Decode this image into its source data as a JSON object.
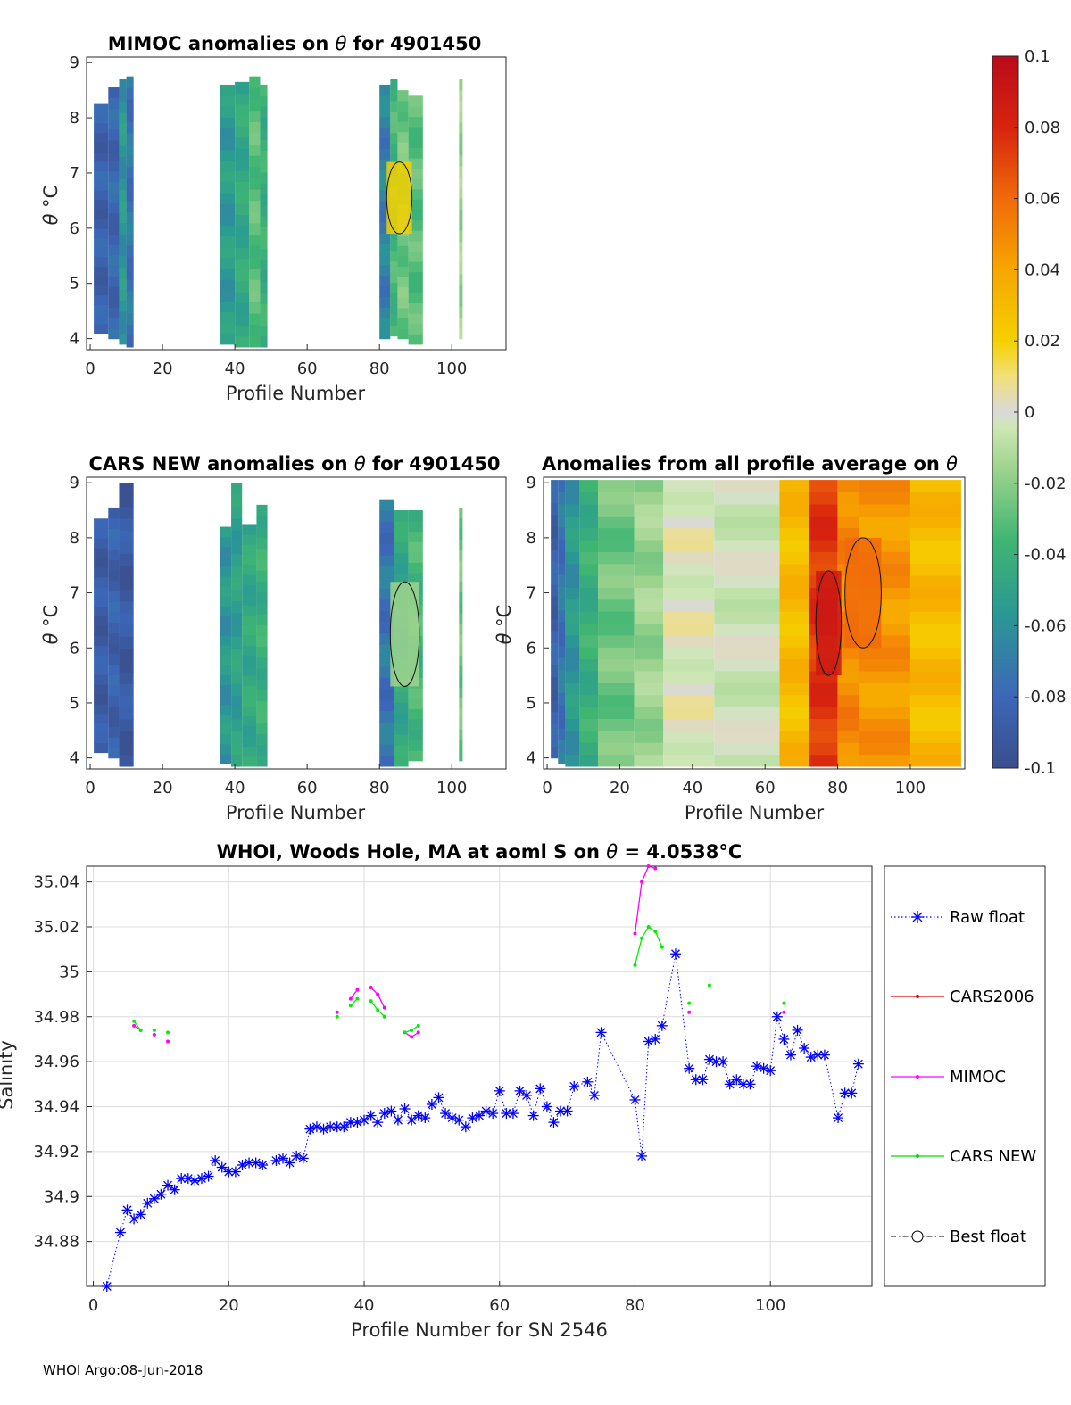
{
  "footer": "WHOI Argo:08-Jun-2018",
  "colorbar": {
    "ticks": [
      "0.1",
      "0.08",
      "0.06",
      "0.04",
      "0.02",
      "0",
      "-0.02",
      "-0.04",
      "-0.06",
      "-0.08",
      "-0.1"
    ],
    "range": [
      -0.1,
      0.1
    ]
  },
  "chart_data": [
    {
      "type": "heatmap",
      "title_prefix": "MIMOC anomalies on ",
      "title_symbol": "θ",
      "title_suffix": "  for 4901450",
      "xlabel": "Profile Number",
      "ylabel_symbol": "θ",
      "ylabel_unit": "°C",
      "xlim": [
        -1,
        115
      ],
      "ylim": [
        3.8,
        9.1
      ],
      "xticks": [
        "0",
        "20",
        "40",
        "60",
        "80",
        "100"
      ],
      "yticks": [
        "4",
        "5",
        "6",
        "7",
        "8",
        "9"
      ],
      "columns": [
        {
          "x0": 1,
          "x1": 5,
          "t0": 4.1,
          "t1": 8.25,
          "v": -0.085
        },
        {
          "x0": 5,
          "x1": 8,
          "t0": 4.0,
          "t1": 8.55,
          "v": -0.082
        },
        {
          "x0": 8,
          "x1": 10,
          "t0": 3.9,
          "t1": 8.7,
          "v": -0.06
        },
        {
          "x0": 10,
          "x1": 12,
          "t0": 3.85,
          "t1": 8.75,
          "v": -0.075
        },
        {
          "x0": 36,
          "x1": 40,
          "t0": 3.9,
          "t1": 8.6,
          "v": -0.058
        },
        {
          "x0": 40,
          "x1": 44,
          "t0": 3.85,
          "t1": 8.65,
          "v": -0.05
        },
        {
          "x0": 44,
          "x1": 47,
          "t0": 3.85,
          "t1": 8.75,
          "v": -0.035
        },
        {
          "x0": 47,
          "x1": 49,
          "t0": 3.85,
          "t1": 8.6,
          "v": -0.045
        },
        {
          "x0": 80,
          "x1": 83,
          "t0": 4.0,
          "t1": 8.6,
          "v": -0.07
        },
        {
          "x0": 83,
          "x1": 85,
          "t0": 4.05,
          "t1": 8.7,
          "v": -0.04
        },
        {
          "x0": 85,
          "x1": 88,
          "t0": 4.0,
          "t1": 8.5,
          "v": -0.03
        },
        {
          "x0": 88,
          "x1": 92,
          "t0": 3.9,
          "t1": 8.4,
          "v": -0.035
        },
        {
          "x0": 102,
          "x1": 103,
          "t0": 4.0,
          "t1": 8.7,
          "v": -0.02
        }
      ],
      "highlights": [
        {
          "x0": 82,
          "x1": 89,
          "t0": 5.9,
          "t1": 7.2,
          "v": 0.02
        }
      ]
    },
    {
      "type": "heatmap",
      "title_prefix": "CARS NEW anomalies on ",
      "title_symbol": "θ",
      "title_suffix": " for 4901450",
      "xlabel": "Profile Number",
      "ylabel_symbol": "θ",
      "ylabel_unit": "°C",
      "xlim": [
        -1,
        115
      ],
      "ylim": [
        3.8,
        9.1
      ],
      "xticks": [
        "0",
        "20",
        "40",
        "60",
        "80",
        "100"
      ],
      "yticks": [
        "4",
        "5",
        "6",
        "7",
        "8",
        "9"
      ],
      "columns": [
        {
          "x0": 1,
          "x1": 5,
          "t0": 4.1,
          "t1": 8.35,
          "v": -0.088
        },
        {
          "x0": 5,
          "x1": 8,
          "t0": 4.0,
          "t1": 8.55,
          "v": -0.085
        },
        {
          "x0": 8,
          "x1": 12,
          "t0": 3.85,
          "t1": 9.0,
          "v": -0.09
        },
        {
          "x0": 36,
          "x1": 39,
          "t0": 3.9,
          "t1": 8.2,
          "v": -0.06
        },
        {
          "x0": 39,
          "x1": 42,
          "t0": 3.85,
          "t1": 9.0,
          "v": -0.055
        },
        {
          "x0": 42,
          "x1": 46,
          "t0": 3.85,
          "t1": 8.25,
          "v": -0.05
        },
        {
          "x0": 46,
          "x1": 49,
          "t0": 3.85,
          "t1": 8.6,
          "v": -0.045
        },
        {
          "x0": 80,
          "x1": 84,
          "t0": 3.85,
          "t1": 8.7,
          "v": -0.075
        },
        {
          "x0": 84,
          "x1": 88,
          "t0": 3.85,
          "t1": 8.5,
          "v": -0.05
        },
        {
          "x0": 88,
          "x1": 92,
          "t0": 3.95,
          "t1": 8.5,
          "v": -0.04
        },
        {
          "x0": 102,
          "x1": 103,
          "t0": 3.95,
          "t1": 8.55,
          "v": -0.03
        }
      ],
      "highlights": [
        {
          "x0": 83,
          "x1": 91,
          "t0": 5.3,
          "t1": 7.2,
          "v": -0.02
        }
      ]
    },
    {
      "type": "heatmap",
      "title_prefix": "Anomalies from all profile average on ",
      "title_symbol": "θ",
      "title_suffix": "",
      "xlabel": "Profile Number",
      "ylabel_symbol": "θ",
      "ylabel_unit": "°C",
      "xlim": [
        -1,
        115
      ],
      "ylim": [
        3.8,
        9.1
      ],
      "xticks": [
        "0",
        "20",
        "40",
        "60",
        "80",
        "100"
      ],
      "yticks": [
        "4",
        "5",
        "6",
        "7",
        "8",
        "9"
      ],
      "columns": [
        {
          "x0": 1,
          "x1": 3,
          "t0": 4.0,
          "t1": 9.05,
          "v": -0.085
        },
        {
          "x0": 3,
          "x1": 5,
          "t0": 3.9,
          "t1": 9.05,
          "v": -0.075
        },
        {
          "x0": 5,
          "x1": 9,
          "t0": 3.85,
          "t1": 9.05,
          "v": -0.06
        },
        {
          "x0": 9,
          "x1": 14,
          "t0": 3.85,
          "t1": 9.05,
          "v": -0.045
        },
        {
          "x0": 14,
          "x1": 24,
          "t0": 3.85,
          "t1": 9.05,
          "v": -0.03
        },
        {
          "x0": 24,
          "x1": 32,
          "t0": 3.85,
          "t1": 9.05,
          "v": -0.02
        },
        {
          "x0": 32,
          "x1": 46,
          "t0": 3.85,
          "t1": 9.05,
          "v": 0.0
        },
        {
          "x0": 46,
          "x1": 64,
          "t0": 3.85,
          "t1": 9.05,
          "v": -0.005
        },
        {
          "x0": 64,
          "x1": 72,
          "t0": 3.85,
          "t1": 9.05,
          "v": 0.03
        },
        {
          "x0": 72,
          "x1": 80,
          "t0": 3.85,
          "t1": 9.05,
          "v": 0.075
        },
        {
          "x0": 80,
          "x1": 86,
          "t0": 3.85,
          "t1": 9.05,
          "v": 0.05
        },
        {
          "x0": 86,
          "x1": 100,
          "t0": 3.85,
          "t1": 9.05,
          "v": 0.045
        },
        {
          "x0": 100,
          "x1": 114,
          "t0": 3.85,
          "t1": 9.05,
          "v": 0.03
        }
      ],
      "highlights": [
        {
          "x0": 74,
          "x1": 81,
          "t0": 5.5,
          "t1": 7.4,
          "v": 0.09
        },
        {
          "x0": 82,
          "x1": 92,
          "t0": 6.0,
          "t1": 8.0,
          "v": 0.06
        }
      ]
    },
    {
      "type": "line",
      "title_prefix": "WHOI, Woods Hole, MA at aoml S on ",
      "title_symbol": "θ",
      "title_suffix": " = 4.0538",
      "title_unit": "°C",
      "xlabel": "Profile Number for SN 2546",
      "ylabel": "Salinity",
      "xlim": [
        -1,
        115
      ],
      "ylim": [
        34.86,
        35.047
      ],
      "xticks": [
        "0",
        "20",
        "40",
        "60",
        "80",
        "100"
      ],
      "yticks": [
        "34.88",
        "34.9",
        "34.92",
        "34.94",
        "34.96",
        "34.98",
        "35",
        "35.02",
        "35.04"
      ],
      "legend": [
        "Raw float",
        "CARS2006",
        "MIMOC",
        "CARS NEW",
        "Best float"
      ],
      "series": [
        {
          "name": "Raw float",
          "color": "#0000ff",
          "x": [
            2,
            4,
            5,
            6,
            7,
            8,
            9,
            10,
            11,
            12,
            13,
            14,
            15,
            16,
            17,
            18,
            19,
            20,
            21,
            22,
            23,
            24,
            25,
            27,
            28,
            29,
            30,
            31,
            32,
            33,
            34,
            35,
            36,
            37,
            38,
            39,
            40,
            41,
            42,
            43,
            44,
            45,
            46,
            47,
            48,
            49,
            50,
            51,
            52,
            53,
            54,
            55,
            56,
            57,
            58,
            59,
            60,
            61,
            62,
            63,
            64,
            65,
            66,
            67,
            68,
            69,
            70,
            71,
            73,
            74,
            75,
            80,
            81,
            82,
            83,
            84,
            86,
            88,
            89,
            90,
            91,
            92,
            93,
            94,
            95,
            96,
            97,
            98,
            99,
            100,
            101,
            102,
            103,
            104,
            105,
            106,
            107,
            108,
            110,
            111,
            112,
            113
          ],
          "y": [
            34.86,
            34.884,
            34.894,
            34.89,
            34.892,
            34.897,
            34.899,
            34.901,
            34.905,
            34.903,
            34.908,
            34.908,
            34.907,
            34.908,
            34.909,
            34.916,
            34.913,
            34.911,
            34.911,
            34.914,
            34.915,
            34.915,
            34.914,
            34.916,
            34.917,
            34.915,
            34.918,
            34.917,
            34.93,
            34.931,
            34.93,
            34.931,
            34.931,
            34.931,
            34.933,
            34.933,
            34.934,
            34.936,
            34.933,
            34.937,
            34.938,
            34.934,
            34.939,
            34.934,
            34.936,
            34.935,
            34.941,
            34.944,
            34.937,
            34.935,
            34.934,
            34.931,
            34.935,
            34.936,
            34.938,
            34.937,
            34.947,
            34.937,
            34.937,
            34.947,
            34.945,
            34.936,
            34.948,
            34.94,
            34.933,
            34.938,
            34.938,
            34.949,
            34.951,
            34.945,
            34.973,
            34.943,
            34.918,
            34.969,
            34.97,
            34.976,
            35.008,
            34.957,
            34.952,
            34.952,
            34.961,
            34.96,
            34.96,
            34.95,
            34.952,
            34.95,
            34.95,
            34.958,
            34.957,
            34.956,
            34.98,
            34.97,
            34.963,
            34.974,
            34.966,
            34.962,
            34.963,
            34.963,
            34.935,
            34.946,
            34.946,
            34.959
          ]
        },
        {
          "name": "MIMOC",
          "color": "#ff00ff",
          "segments": [
            {
              "x": [
                6,
                7
              ],
              "y": [
                34.976,
                34.974
              ]
            },
            {
              "x": [
                9
              ],
              "y": [
                34.972
              ]
            },
            {
              "x": [
                11
              ],
              "y": [
                34.969
              ]
            },
            {
              "x": [
                36
              ],
              "y": [
                34.982
              ]
            },
            {
              "x": [
                38,
                39
              ],
              "y": [
                34.988,
                34.992
              ]
            },
            {
              "x": [
                41,
                42,
                43
              ],
              "y": [
                34.993,
                34.99,
                34.984
              ]
            },
            {
              "x": [
                46,
                47,
                48
              ],
              "y": [
                34.973,
                34.971,
                34.973
              ]
            },
            {
              "x": [
                80,
                81,
                82,
                83
              ],
              "y": [
                35.017,
                35.04,
                35.047,
                35.046
              ]
            },
            {
              "x": [
                88
              ],
              "y": [
                34.982
              ]
            },
            {
              "x": [
                102
              ],
              "y": [
                34.982
              ]
            }
          ]
        },
        {
          "name": "CARS NEW",
          "color": "#00ee00",
          "segments": [
            {
              "x": [
                6,
                7
              ],
              "y": [
                34.978,
                34.974
              ]
            },
            {
              "x": [
                9
              ],
              "y": [
                34.974
              ]
            },
            {
              "x": [
                11
              ],
              "y": [
                34.973
              ]
            },
            {
              "x": [
                36
              ],
              "y": [
                34.98
              ]
            },
            {
              "x": [
                38,
                39
              ],
              "y": [
                34.985,
                34.988
              ]
            },
            {
              "x": [
                41,
                42,
                43
              ],
              "y": [
                34.987,
                34.983,
                34.98
              ]
            },
            {
              "x": [
                46,
                47,
                48
              ],
              "y": [
                34.973,
                34.974,
                34.976
              ]
            },
            {
              "x": [
                80,
                81,
                82,
                83,
                84
              ],
              "y": [
                35.003,
                35.015,
                35.02,
                35.018,
                35.011
              ]
            },
            {
              "x": [
                88
              ],
              "y": [
                34.986
              ]
            },
            {
              "x": [
                91
              ],
              "y": [
                34.994
              ]
            },
            {
              "x": [
                102
              ],
              "y": [
                34.986
              ]
            }
          ]
        }
      ]
    }
  ]
}
